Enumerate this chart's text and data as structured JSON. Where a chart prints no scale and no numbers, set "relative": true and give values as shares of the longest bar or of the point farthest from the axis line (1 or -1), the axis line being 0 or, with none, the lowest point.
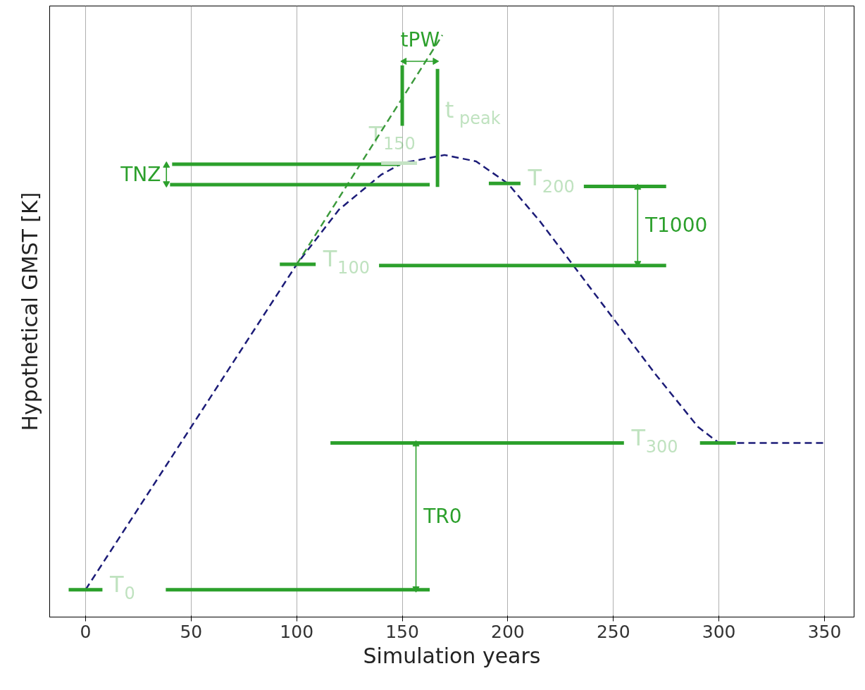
{
  "chart_data": {
    "type": "line",
    "relative": true,
    "xlabel": "Simulation years",
    "ylabel": "Hypothetical GMST [K]",
    "xlim": [
      -17,
      364
    ],
    "xticks": [
      0,
      50,
      100,
      150,
      200,
      250,
      300,
      350
    ],
    "grid": "x",
    "series": [
      {
        "color": "#1c1c78",
        "line_style": "dashed",
        "x": [
          0,
          100,
          120,
          140,
          150,
          170,
          185,
          200,
          215,
          230,
          250,
          270,
          290,
          300,
          350
        ],
        "values": [
          0.047,
          0.606,
          0.7,
          0.76,
          0.78,
          0.794,
          0.783,
          0.745,
          0.681,
          0.609,
          0.513,
          0.417,
          0.327,
          0.299,
          0.299
        ]
      },
      {
        "color": "#3c9a3c",
        "line_style": "dashed",
        "x": [
          100,
          169
        ],
        "values": [
          0.606,
          1.0
        ]
      },
      {
        "name": "T$_{0}$",
        "color": "#2ca02c",
        "line_style": "solid",
        "x": [
          -8,
          8
        ],
        "values": [
          0.047,
          0.047
        ]
      },
      {
        "color": "#2ca02c",
        "line_style": "solid",
        "x": [
          38,
          163
        ],
        "values": [
          0.047,
          0.047
        ]
      },
      {
        "name": "T$_{100}$",
        "color": "#2ca02c",
        "line_style": "solid",
        "x": [
          92,
          109
        ],
        "values": [
          0.606,
          0.606
        ]
      },
      {
        "color": "#2ca02c",
        "line_style": "solid",
        "x": [
          139,
          275
        ],
        "values": [
          0.604,
          0.604
        ]
      },
      {
        "color": "#2ca02c",
        "line_style": "solid",
        "x": [
          41,
          149
        ],
        "values": [
          0.778,
          0.778
        ]
      },
      {
        "name": "T$_{150}$",
        "color": "#c5e3c5",
        "line_style": "solid",
        "x": [
          140,
          157
        ],
        "values": [
          0.78,
          0.78
        ]
      },
      {
        "color": "#2ca02c",
        "line_style": "solid",
        "x": [
          40,
          163
        ],
        "values": [
          0.743,
          0.743
        ]
      },
      {
        "name": "T$_{200}$",
        "color": "#2ca02c",
        "line_style": "solid",
        "x": [
          191,
          206
        ],
        "values": [
          0.745,
          0.745
        ]
      },
      {
        "color": "#2ca02c",
        "line_style": "solid",
        "x": [
          236,
          275
        ],
        "values": [
          0.74,
          0.74
        ]
      },
      {
        "color": "#2ca02c",
        "line_style": "solid",
        "x": [
          291,
          308
        ],
        "values": [
          0.299,
          0.299
        ]
      },
      {
        "name": "T$_{300}$",
        "color": "#2ca02c",
        "line_style": "solid",
        "x": [
          116,
          255
        ],
        "values": [
          0.299,
          0.299
        ]
      },
      {
        "color": "#2ca02c",
        "line_style": "solid",
        "x": [
          150,
          150
        ],
        "values": [
          0.948,
          0.844
        ]
      },
      {
        "name": "t$_{peak}$",
        "color": "#2ca02c",
        "line_style": "solid",
        "x": [
          166.7,
          166.7
        ],
        "values": [
          0.942,
          0.739
        ]
      },
      {
        "name": "tPW",
        "color": "#2ca02c",
        "line_style": "solid",
        "marker": "triangle",
        "x": [
          151,
          165.5
        ],
        "values": [
          0.955,
          0.955
        ]
      },
      {
        "name": "TNZ",
        "color": "#2ca02c",
        "line_style": "solid",
        "marker": "triangle",
        "x": [
          38.3,
          38.3
        ],
        "values": [
          0.776,
          0.745
        ]
      },
      {
        "name": "T1000",
        "color": "#2ca02c",
        "line_style": "solid",
        "marker": "triangle",
        "x": [
          261.5,
          261.5
        ],
        "values": [
          0.738,
          0.608
        ]
      },
      {
        "name": "TR0",
        "color": "#2ca02c",
        "line_style": "solid",
        "marker": "triangle",
        "x": [
          156.5,
          156.5
        ],
        "values": [
          0.297,
          0.049
        ]
      }
    ]
  }
}
